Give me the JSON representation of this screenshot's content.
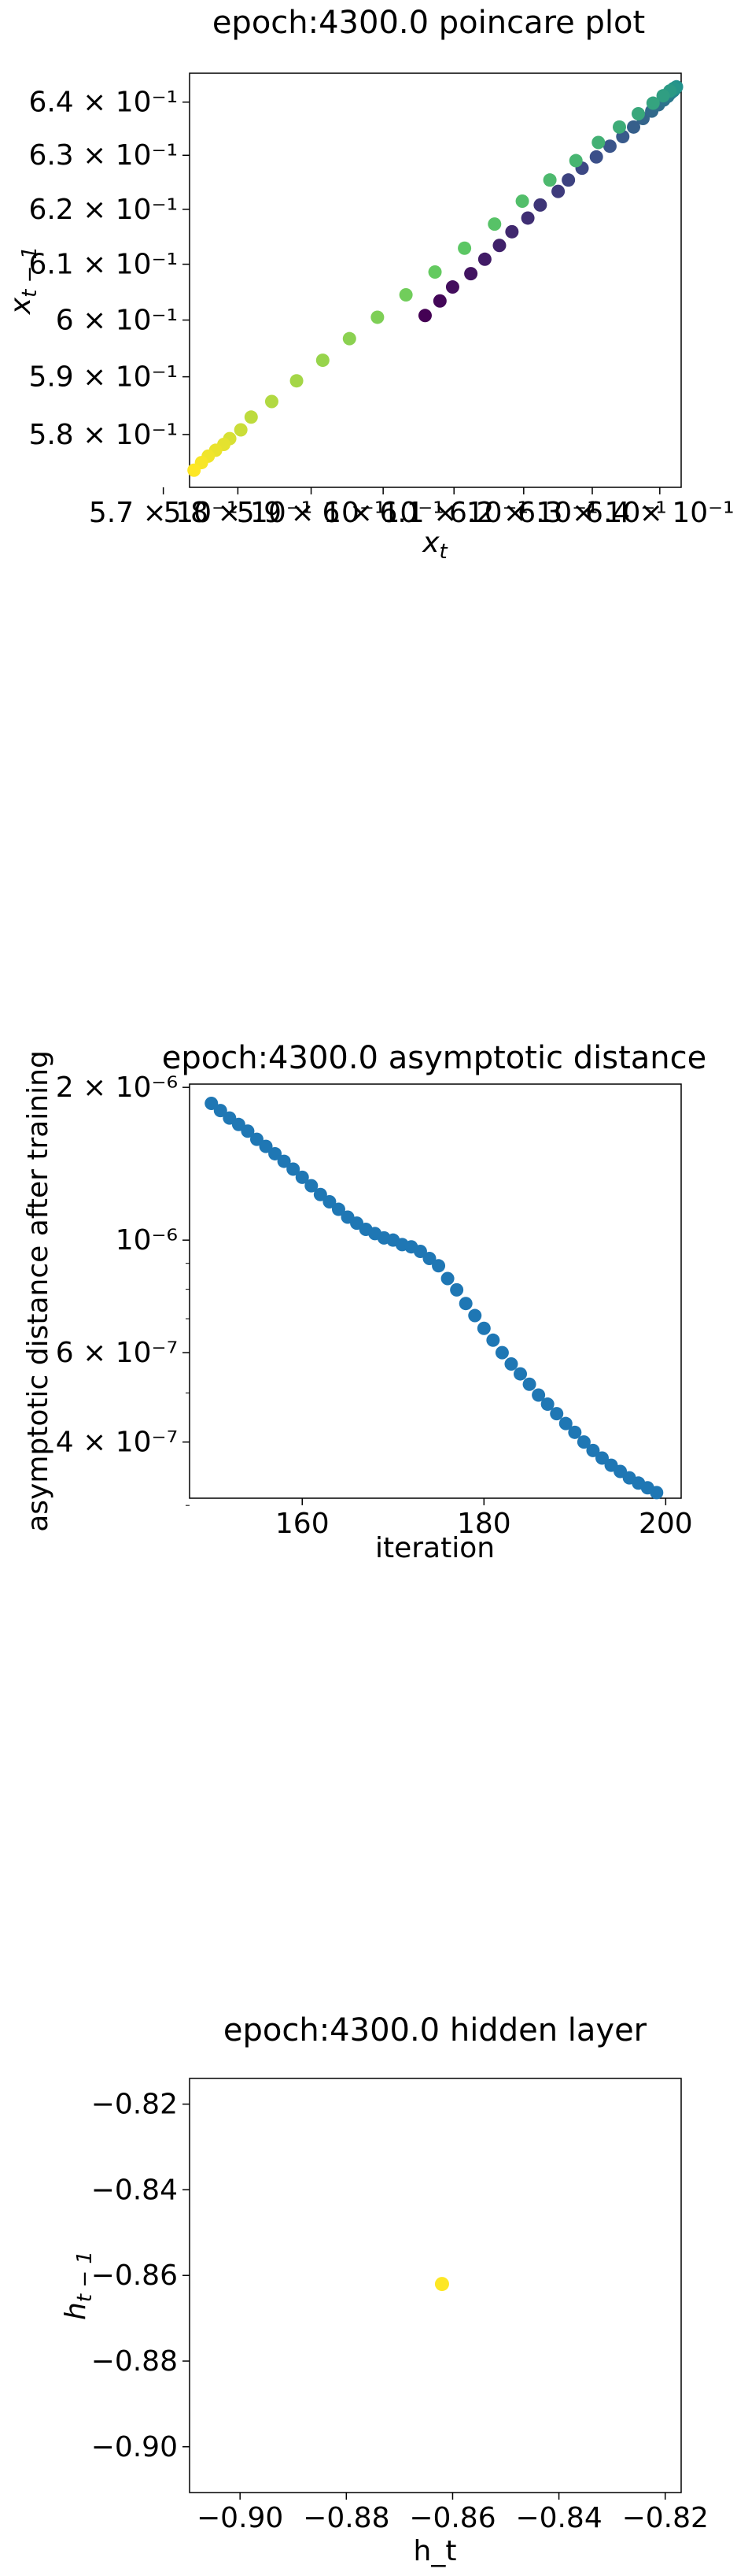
{
  "chart_data": [
    {
      "type": "scatter",
      "title": "epoch:4300.0 poincare plot",
      "xlabel": "x_t",
      "ylabel": "x_{t-1}",
      "scale": "log",
      "xlim": [
        0.5735,
        0.6432
      ],
      "ylim": [
        0.571,
        0.6455
      ],
      "x_ticks": [
        {
          "label": "5.7 × 10⁻¹",
          "value": 0.57
        },
        {
          "label": "5.8 × 10⁻¹",
          "value": 0.58
        },
        {
          "label": "5.9 × 10⁻¹",
          "value": 0.59
        },
        {
          "label": "6 × 10⁻¹",
          "value": 0.6
        },
        {
          "label": "6.1 × 10⁻¹",
          "value": 0.61
        },
        {
          "label": "6.2 × 10⁻¹",
          "value": 0.62
        },
        {
          "label": "6.3 × 10⁻¹",
          "value": 0.63
        },
        {
          "label": "6.4 × 10⁻¹",
          "value": 0.64
        }
      ],
      "y_ticks": [
        {
          "label": "5.8 × 10⁻¹",
          "value": 0.58
        },
        {
          "label": "5.9 × 10⁻¹",
          "value": 0.59
        },
        {
          "label": "6 × 10⁻¹",
          "value": 0.6
        },
        {
          "label": "6.1 × 10⁻¹",
          "value": 0.61
        },
        {
          "label": "6.2 × 10⁻¹",
          "value": 0.62
        },
        {
          "label": "6.3 × 10⁻¹",
          "value": 0.63
        },
        {
          "label": "6.4 × 10⁻¹",
          "value": 0.64
        }
      ],
      "colormap": "viridis",
      "points": [
        {
          "x": 0.6059,
          "y": 0.6008,
          "c": 0.0
        },
        {
          "x": 0.608,
          "y": 0.6034,
          "c": 0.02
        },
        {
          "x": 0.6098,
          "y": 0.6059,
          "c": 0.04
        },
        {
          "x": 0.6124,
          "y": 0.6083,
          "c": 0.06
        },
        {
          "x": 0.6144,
          "y": 0.6109,
          "c": 0.08
        },
        {
          "x": 0.6165,
          "y": 0.6134,
          "c": 0.1
        },
        {
          "x": 0.6183,
          "y": 0.6159,
          "c": 0.12
        },
        {
          "x": 0.6206,
          "y": 0.6184,
          "c": 0.14
        },
        {
          "x": 0.6224,
          "y": 0.6208,
          "c": 0.16
        },
        {
          "x": 0.625,
          "y": 0.6233,
          "c": 0.18
        },
        {
          "x": 0.6265,
          "y": 0.6254,
          "c": 0.2
        },
        {
          "x": 0.6285,
          "y": 0.6276,
          "c": 0.22
        },
        {
          "x": 0.6306,
          "y": 0.6297,
          "c": 0.24
        },
        {
          "x": 0.6326,
          "y": 0.6317,
          "c": 0.26
        },
        {
          "x": 0.6345,
          "y": 0.6335,
          "c": 0.28
        },
        {
          "x": 0.6361,
          "y": 0.6353,
          "c": 0.3
        },
        {
          "x": 0.6375,
          "y": 0.6369,
          "c": 0.32
        },
        {
          "x": 0.6388,
          "y": 0.6383,
          "c": 0.34
        },
        {
          "x": 0.6398,
          "y": 0.6395,
          "c": 0.36
        },
        {
          "x": 0.6406,
          "y": 0.6404,
          "c": 0.38
        },
        {
          "x": 0.6412,
          "y": 0.6411,
          "c": 0.4
        },
        {
          "x": 0.6416,
          "y": 0.6417,
          "c": 0.42
        },
        {
          "x": 0.642,
          "y": 0.6421,
          "c": 0.44
        },
        {
          "x": 0.6422,
          "y": 0.6424,
          "c": 0.46
        },
        {
          "x": 0.6424,
          "y": 0.6427,
          "c": 0.48
        },
        {
          "x": 0.6425,
          "y": 0.6429,
          "c": 0.5
        },
        {
          "x": 0.6421,
          "y": 0.6426,
          "c": 0.52
        },
        {
          "x": 0.6415,
          "y": 0.6421,
          "c": 0.54
        },
        {
          "x": 0.6405,
          "y": 0.6412,
          "c": 0.56
        },
        {
          "x": 0.639,
          "y": 0.6398,
          "c": 0.58
        },
        {
          "x": 0.6368,
          "y": 0.6378,
          "c": 0.6
        },
        {
          "x": 0.634,
          "y": 0.6353,
          "c": 0.62
        },
        {
          "x": 0.6309,
          "y": 0.6324,
          "c": 0.64
        },
        {
          "x": 0.6276,
          "y": 0.629,
          "c": 0.66
        },
        {
          "x": 0.6238,
          "y": 0.6254,
          "c": 0.68
        },
        {
          "x": 0.6198,
          "y": 0.6215,
          "c": 0.7
        },
        {
          "x": 0.6158,
          "y": 0.6173,
          "c": 0.72
        },
        {
          "x": 0.6115,
          "y": 0.6129,
          "c": 0.74
        },
        {
          "x": 0.6073,
          "y": 0.6086,
          "c": 0.76
        },
        {
          "x": 0.6032,
          "y": 0.6045,
          "c": 0.78
        },
        {
          "x": 0.5992,
          "y": 0.6005,
          "c": 0.8
        },
        {
          "x": 0.5953,
          "y": 0.5967,
          "c": 0.82
        },
        {
          "x": 0.5916,
          "y": 0.5929,
          "c": 0.84
        },
        {
          "x": 0.588,
          "y": 0.5893,
          "c": 0.86
        },
        {
          "x": 0.5846,
          "y": 0.5857,
          "c": 0.88
        },
        {
          "x": 0.5818,
          "y": 0.583,
          "c": 0.9
        },
        {
          "x": 0.5804,
          "y": 0.5808,
          "c": 0.92
        },
        {
          "x": 0.5789,
          "y": 0.5793,
          "c": 0.94
        },
        {
          "x": 0.5781,
          "y": 0.5783,
          "c": 0.96
        },
        {
          "x": 0.577,
          "y": 0.5773,
          "c": 0.97
        },
        {
          "x": 0.576,
          "y": 0.5763,
          "c": 0.98
        },
        {
          "x": 0.5751,
          "y": 0.5752,
          "c": 0.99
        },
        {
          "x": 0.5741,
          "y": 0.5739,
          "c": 1.0
        }
      ]
    },
    {
      "type": "scatter",
      "title": "epoch:4300.0 asymptotic distance",
      "xlabel": "iteration",
      "ylabel": "asymptotic distance after training",
      "yscale": "log",
      "xlim": [
        147.6,
        201.7
      ],
      "ylim": [
        3.1e-07,
        2.03e-06
      ],
      "x_ticks": [
        {
          "label": "160",
          "value": 160
        },
        {
          "label": "180",
          "value": 180
        },
        {
          "label": "200",
          "value": 200
        }
      ],
      "y_ticks": [
        {
          "label": "2 × 10⁻⁶",
          "value": 2e-06
        },
        {
          "label": "10⁻⁶",
          "value": 1e-06
        },
        {
          "label": "6 × 10⁻⁷",
          "value": 6e-07
        },
        {
          "label": "4 × 10⁻⁷",
          "value": 4e-07
        }
      ],
      "color": "#1f77b4",
      "x": [
        150,
        151,
        152,
        153,
        154,
        155,
        156,
        157,
        158,
        159,
        160,
        161,
        162,
        163,
        164,
        165,
        166,
        167,
        168,
        169,
        170,
        171,
        172,
        173,
        174,
        175,
        176,
        177,
        178,
        179,
        180,
        181,
        182,
        183,
        184,
        185,
        186,
        187,
        188,
        189,
        190,
        191,
        192,
        193,
        194,
        195,
        196,
        197,
        198,
        199
      ],
      "y": [
        1.86e-06,
        1.8e-06,
        1.74e-06,
        1.69e-06,
        1.64e-06,
        1.58e-06,
        1.53e-06,
        1.48e-06,
        1.43e-06,
        1.38e-06,
        1.33e-06,
        1.28e-06,
        1.23e-06,
        1.19e-06,
        1.15e-06,
        1.11e-06,
        1.08e-06,
        1.05e-06,
        1.03e-06,
        1.01e-06,
        1e-06,
        9.8e-07,
        9.7e-07,
        9.5e-07,
        9.2e-07,
        8.9e-07,
        8.4e-07,
        7.98e-07,
        7.5e-07,
        7.1e-07,
        6.7e-07,
        6.35e-07,
        6e-07,
        5.7e-07,
        5.45e-07,
        5.2e-07,
        4.95e-07,
        4.75e-07,
        4.55e-07,
        4.35e-07,
        4.18e-07,
        4e-07,
        3.85e-07,
        3.72e-07,
        3.6e-07,
        3.5e-07,
        3.4e-07,
        3.32e-07,
        3.25e-07,
        3.18e-07
      ]
    },
    {
      "type": "scatter",
      "title": "epoch:4300.0 hidden layer",
      "xlabel": "h_t",
      "ylabel": "h_{t-1}",
      "xlim": [
        -0.9095,
        -0.817
      ],
      "ylim": [
        -0.9107,
        -0.814
      ],
      "x_ticks": [
        {
          "label": "−0.90",
          "value": -0.9
        },
        {
          "label": "−0.88",
          "value": -0.88
        },
        {
          "label": "−0.86",
          "value": -0.86
        },
        {
          "label": "−0.84",
          "value": -0.84
        },
        {
          "label": "−0.82",
          "value": -0.82
        }
      ],
      "y_ticks": [
        {
          "label": "−0.82",
          "value": -0.82
        },
        {
          "label": "−0.84",
          "value": -0.84
        },
        {
          "label": "−0.86",
          "value": -0.86
        },
        {
          "label": "−0.88",
          "value": -0.88
        },
        {
          "label": "−0.90",
          "value": -0.9
        }
      ],
      "color": "#fde725",
      "points": [
        {
          "x": -0.862,
          "y": -0.862
        }
      ]
    }
  ]
}
